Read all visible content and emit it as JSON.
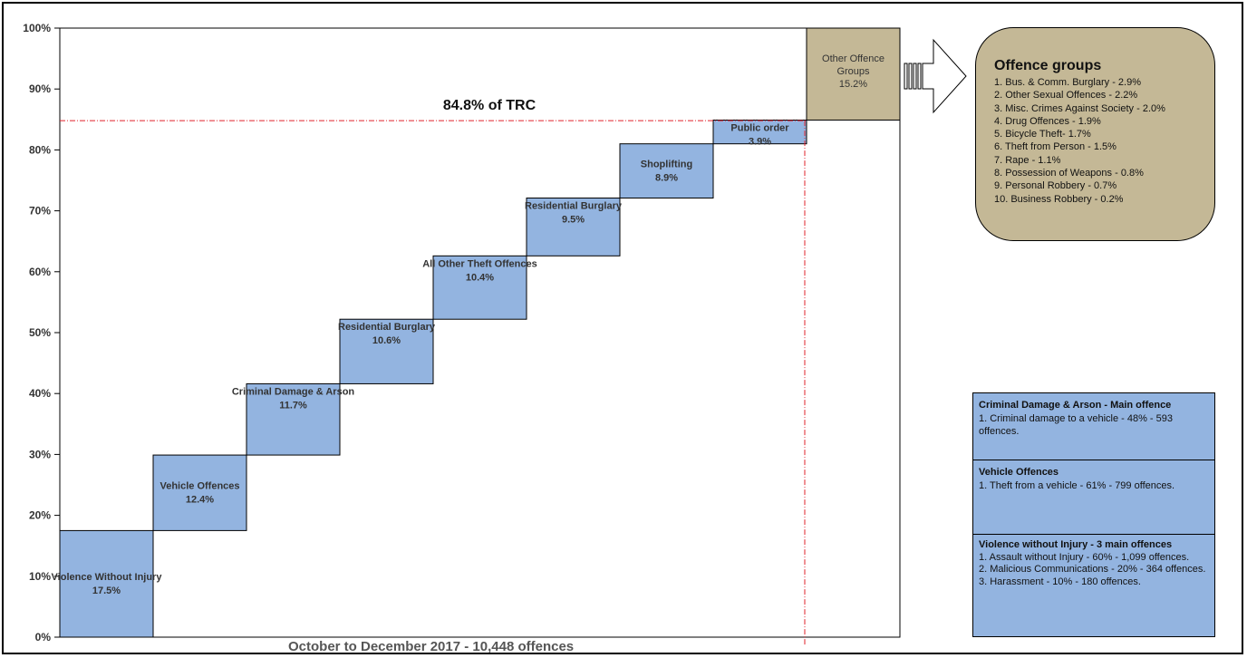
{
  "chart_data": {
    "type": "waterfall",
    "xlabel": "October to December 2017  - 10,448 offences",
    "ylim": [
      0,
      100
    ],
    "yticks": [
      "0%",
      "10%",
      "20%",
      "30%",
      "40%",
      "50%",
      "60%",
      "70%",
      "80%",
      "90%",
      "100%"
    ],
    "bars": [
      {
        "name": "Violence Without Injury",
        "value": 17.5,
        "value_label": "17.5%"
      },
      {
        "name": "Vehicle Offences",
        "value": 12.4,
        "value_label": "12.4%"
      },
      {
        "name": "Criminal Damage & Arson",
        "value": 11.7,
        "value_label": "11.7%"
      },
      {
        "name": "Residential Burglary",
        "value": 10.6,
        "value_label": "10.6%"
      },
      {
        "name": "All Other Theft Offences",
        "value": 10.4,
        "value_label": "10.4%"
      },
      {
        "name": "Residential Burglary",
        "value": 9.5,
        "value_label": "9.5%"
      },
      {
        "name": "Shoplifting",
        "value": 8.9,
        "value_label": "8.9%"
      },
      {
        "name": "Public order",
        "value": 3.9,
        "value_label": "3.9%"
      },
      {
        "name": "Other Offence Groups",
        "value": 15.2,
        "value_label": "15.2%"
      }
    ],
    "annotation": {
      "text": "84.8% of TRC",
      "value": 84.8
    },
    "colors": {
      "bar": "#93b4e0",
      "other": "#c4b896",
      "reference_line": "#e0202a"
    }
  },
  "offence_groups": {
    "title": "Offence groups",
    "items": [
      "1.  Bus. & Comm. Burglary - 2.9%",
      "2.  Other Sexual Offences - 2.2%",
      "3.  Misc. Crimes Against Society - 2.0%",
      "4.  Drug Offences  - 1.9%",
      "5.  Bicycle Theft- 1.7%",
      "6.  Theft from Person  -  1.5%",
      "7.  Rape - 1.1%",
      "8.  Possession of Weapons - 0.8%",
      "9.  Personal Robbery - 0.7%",
      "10. Business Robbery - 0.2%"
    ]
  },
  "main_offences": {
    "criminal_damage": {
      "title": "Criminal Damage & Arson - Main offence",
      "lines": [
        "1. Criminal damage to a vehicle - 48% - 593 offences."
      ]
    },
    "vehicle": {
      "title": "Vehicle  Offences",
      "lines": [
        "1. Theft from a vehicle - 61% - 799 offences."
      ]
    },
    "violence": {
      "title": "Violence without Injury - 3 main offences",
      "lines": [
        "1. Assault without Injury - 60% - 1,099 offences.",
        "2. Malicious Communications - 20% - 364 offences.",
        "3. Harassment - 10% - 180 offences."
      ]
    }
  }
}
